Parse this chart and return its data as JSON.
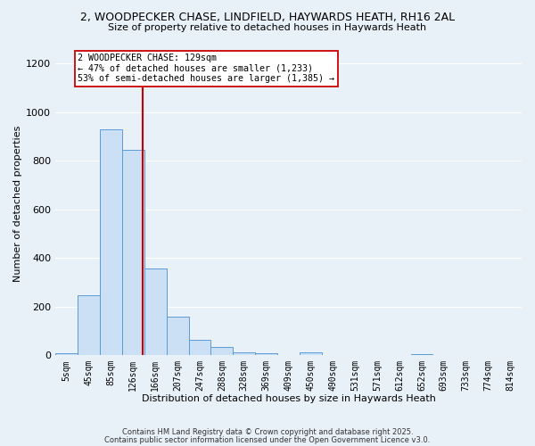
{
  "title_line1": "2, WOODPECKER CHASE, LINDFIELD, HAYWARDS HEATH, RH16 2AL",
  "title_line2": "Size of property relative to detached houses in Haywards Heath",
  "xlabel": "Distribution of detached houses by size in Haywards Heath",
  "ylabel": "Number of detached properties",
  "bin_labels": [
    "5sqm",
    "45sqm",
    "85sqm",
    "126sqm",
    "166sqm",
    "207sqm",
    "247sqm",
    "288sqm",
    "328sqm",
    "369sqm",
    "409sqm",
    "450sqm",
    "490sqm",
    "531sqm",
    "571sqm",
    "612sqm",
    "652sqm",
    "693sqm",
    "733sqm",
    "774sqm",
    "814sqm"
  ],
  "bar_values": [
    8,
    248,
    930,
    843,
    358,
    158,
    62,
    35,
    13,
    8,
    0,
    10,
    0,
    0,
    0,
    0,
    5,
    0,
    0,
    0,
    0
  ],
  "bar_color": "#cce0f5",
  "bar_edge_color": "#5b9bd5",
  "annotation_text": "2 WOODPECKER CHASE: 129sqm\n← 47% of detached houses are smaller (1,233)\n53% of semi-detached houses are larger (1,385) →",
  "annotation_box_color": "white",
  "annotation_box_edge_color": "#cc0000",
  "vline_x": 3.44,
  "vline_color": "#cc0000",
  "ylim": [
    0,
    1250
  ],
  "yticks": [
    0,
    200,
    400,
    600,
    800,
    1000,
    1200
  ],
  "background_color": "#e8f0f8",
  "grid_color": "white",
  "footer_line1": "Contains HM Land Registry data © Crown copyright and database right 2025.",
  "footer_line2": "Contains public sector information licensed under the Open Government Licence v3.0."
}
